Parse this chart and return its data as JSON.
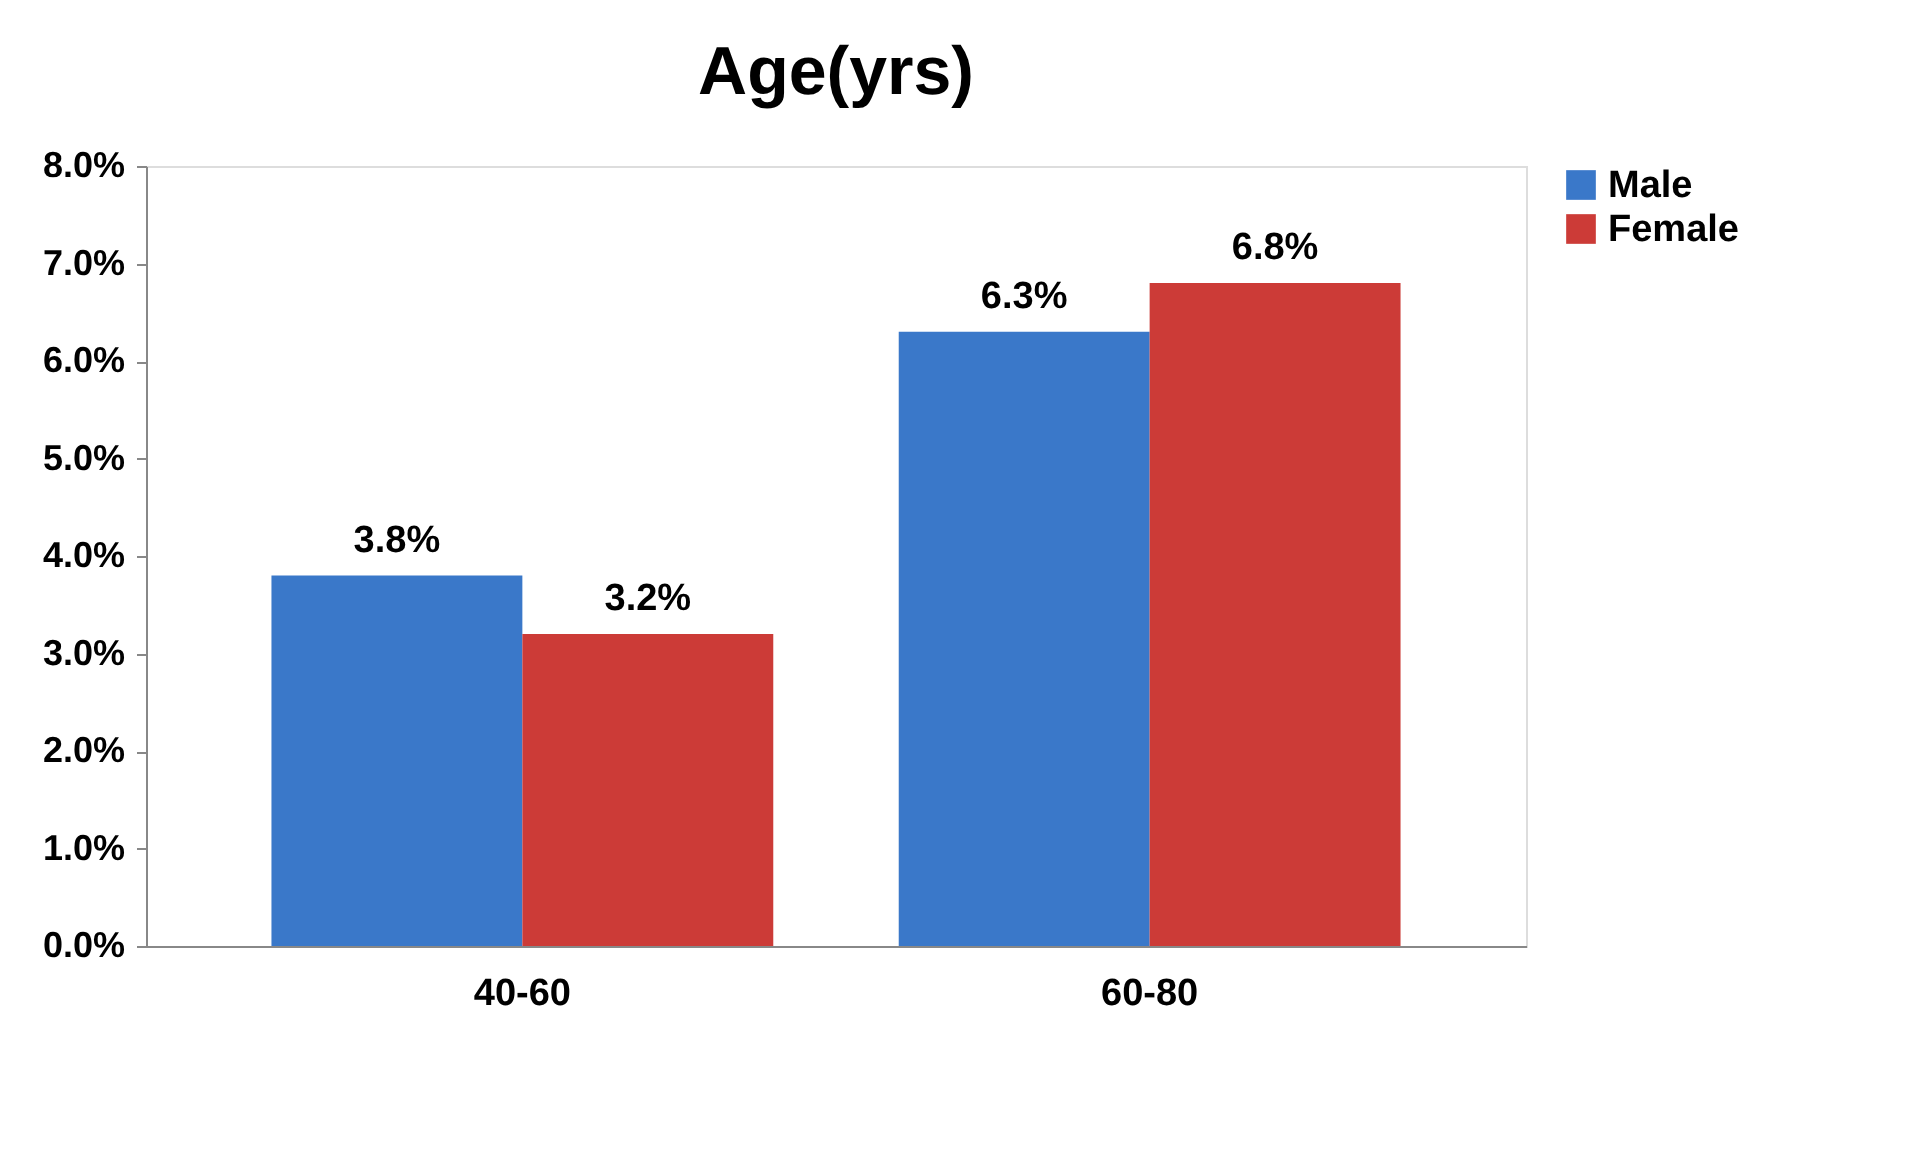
{
  "chart_data": {
    "type": "bar",
    "title": "Age(yrs)",
    "categories": [
      "40-60",
      "60-80"
    ],
    "series": [
      {
        "name": "Male",
        "color": "#3a78c9",
        "values": [
          3.8,
          6.3
        ],
        "value_labels": [
          "3.8%",
          "6.3%"
        ]
      },
      {
        "name": "Female",
        "color": "#cc3b37",
        "values": [
          3.2,
          6.8
        ],
        "value_labels": [
          "3.2%",
          "6.8%"
        ]
      }
    ],
    "ylim": [
      0,
      8
    ],
    "yticks": [
      {
        "value": 0,
        "label": "0.0%"
      },
      {
        "value": 1,
        "label": "1.0%"
      },
      {
        "value": 2,
        "label": "2.0%"
      },
      {
        "value": 3,
        "label": "3.0%"
      },
      {
        "value": 4,
        "label": "4.0%"
      },
      {
        "value": 5,
        "label": "5.0%"
      },
      {
        "value": 6,
        "label": "6.0%"
      },
      {
        "value": 7,
        "label": "7.0%"
      },
      {
        "value": 8,
        "label": "8.0%"
      }
    ],
    "grid": false,
    "legend": "right"
  }
}
